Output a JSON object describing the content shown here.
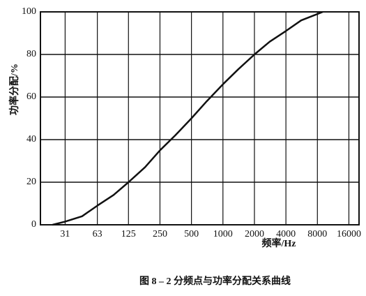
{
  "chart_data": {
    "type": "line",
    "title": "图 8 – 2   分频点与功率分配关系曲线",
    "x_label": "频率/Hz",
    "y_label": "功率分配/%",
    "x": [
      23.5,
      31,
      45,
      63,
      90,
      125,
      180,
      250,
      350,
      500,
      700,
      1000,
      1400,
      2000,
      2800,
      4000,
      5600,
      8000,
      9000
    ],
    "series": [
      {
        "name": "功率分配",
        "color": "#111111",
        "values": [
          0,
          1.5,
          4,
          9,
          14,
          20,
          27,
          35,
          42,
          50,
          58,
          66,
          73,
          80,
          86,
          91,
          96,
          99,
          100
        ]
      }
    ],
    "xlim": [
      18,
      20000
    ],
    "xticks": [
      31,
      63,
      125,
      250,
      500,
      1000,
      2000,
      4000,
      8000,
      16000
    ],
    "x_log": true,
    "ylim": [
      0,
      100
    ],
    "yticks": [
      0,
      20,
      40,
      60,
      80,
      100
    ],
    "grid": true
  }
}
